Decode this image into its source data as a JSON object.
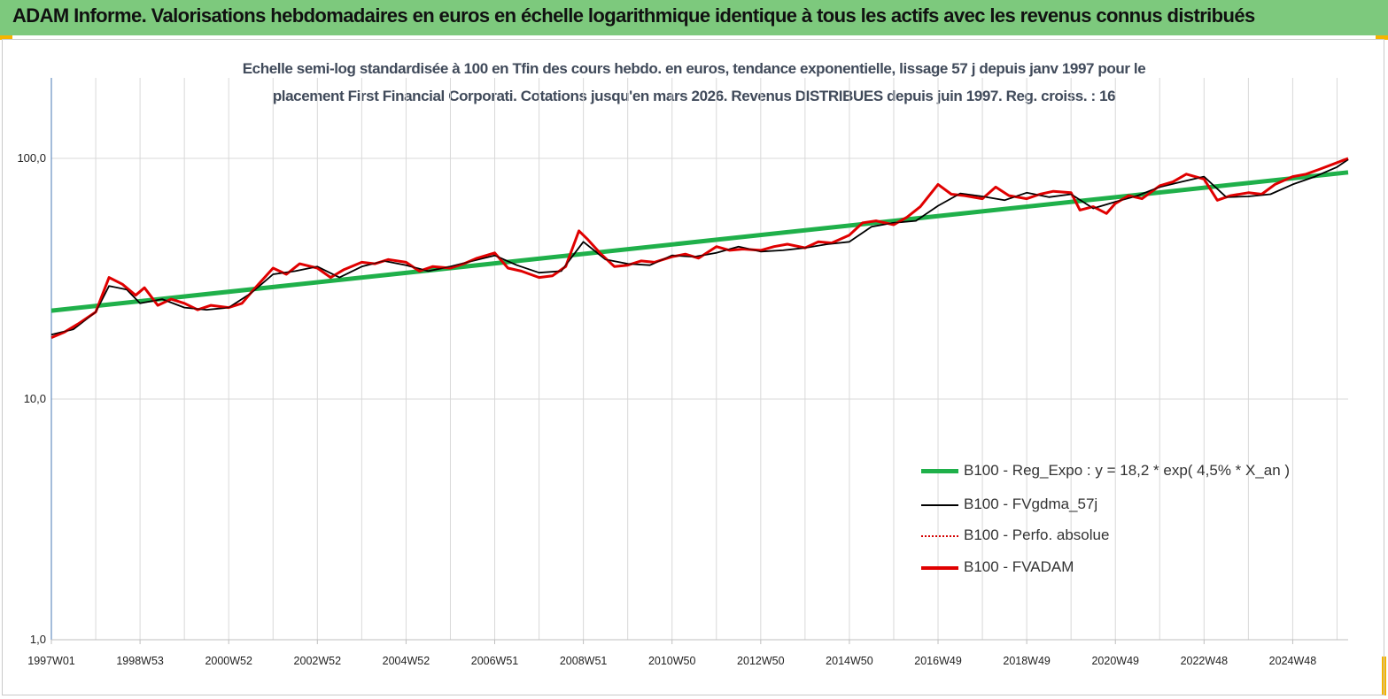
{
  "header": {
    "title": "ADAM Informe. Valorisations hebdomadaires en euros en échelle logarithmique identique à tous les actifs avec les revenus connus distribués"
  },
  "colors": {
    "header_bg": "#7dc97d",
    "regression": "#1fb04a",
    "moving_average": "#000000",
    "perfo_absolue": "#d40000",
    "fvadam": "#e00000",
    "corner_marks": "#f5b400"
  },
  "chart_data": {
    "type": "line",
    "title_lines": [
      "Echelle semi-log standardisée à 100 en Tfin des cours hebdo. en euros, tendance exponentielle, lissage 57 j depuis janv 1997 pour le",
      "placement First Financial Corporati. Cotations jusqu'en mars  2026. Revenus DISTRIBUES depuis juin 1997. Reg. croiss. : 16"
    ],
    "y_scale": "log",
    "ylim": [
      1,
      180
    ],
    "y_ticks": [
      {
        "value": 1,
        "label": "1,0"
      },
      {
        "value": 10,
        "label": "10,0"
      },
      {
        "value": 100,
        "label": "100,0"
      }
    ],
    "xlim": [
      1997.0,
      2026.25
    ],
    "x_ticks": [
      {
        "x": 1997.0,
        "label": "1997W01"
      },
      {
        "x": 1999.0,
        "label": "1998W53"
      },
      {
        "x": 2001.0,
        "label": "2000W52"
      },
      {
        "x": 2003.0,
        "label": "2002W52"
      },
      {
        "x": 2005.0,
        "label": "2004W52"
      },
      {
        "x": 2007.0,
        "label": "2006W51"
      },
      {
        "x": 2009.0,
        "label": "2008W51"
      },
      {
        "x": 2011.0,
        "label": "2010W50"
      },
      {
        "x": 2013.0,
        "label": "2012W50"
      },
      {
        "x": 2015.0,
        "label": "2014W50"
      },
      {
        "x": 2017.0,
        "label": "2016W49"
      },
      {
        "x": 2019.0,
        "label": "2018W49"
      },
      {
        "x": 2021.0,
        "label": "2020W49"
      },
      {
        "x": 2023.0,
        "label": "2022W48"
      },
      {
        "x": 2025.0,
        "label": "2024W48"
      }
    ],
    "grid": "vertical",
    "legend_position": "bottom-right",
    "series": [
      {
        "name": "B100 - Reg_Expo : y = 18,2 *  exp( 4,5% *  X_an )",
        "key": "regression",
        "style": "solid-thick",
        "x": [
          1997.0,
          2026.25
        ],
        "y": [
          23.3,
          87.5
        ]
      },
      {
        "name": "B100 - FVgdma_57j",
        "key": "moving_average",
        "style": "solid",
        "x": [
          1997.0,
          1997.5,
          1998.0,
          1998.3,
          1998.7,
          1999.0,
          1999.5,
          2000.0,
          2000.5,
          2001.0,
          2001.5,
          2002.0,
          2002.5,
          2003.0,
          2003.5,
          2004.0,
          2004.5,
          2005.0,
          2005.5,
          2006.0,
          2006.5,
          2007.0,
          2007.5,
          2008.0,
          2008.5,
          2009.0,
          2009.5,
          2010.0,
          2010.5,
          2011.0,
          2011.5,
          2012.0,
          2012.5,
          2013.0,
          2013.5,
          2014.0,
          2014.5,
          2015.0,
          2015.5,
          2016.0,
          2016.5,
          2017.0,
          2017.5,
          2018.0,
          2018.5,
          2019.0,
          2019.5,
          2020.0,
          2020.5,
          2021.0,
          2021.5,
          2022.0,
          2022.5,
          2023.0,
          2023.5,
          2024.0,
          2024.5,
          2025.0,
          2025.5,
          2026.0,
          2026.25
        ],
        "y": [
          18.5,
          19.5,
          23.0,
          29.5,
          28.5,
          25.0,
          26.0,
          24.0,
          23.5,
          24.0,
          27.5,
          33.0,
          34.0,
          35.5,
          32.0,
          35.5,
          37.5,
          36.0,
          34.0,
          35.5,
          37.5,
          39.5,
          36.0,
          33.5,
          34.0,
          45.0,
          38.0,
          36.5,
          36.0,
          39.5,
          39.0,
          40.5,
          43.0,
          41.0,
          41.5,
          42.5,
          44.0,
          45.0,
          52.0,
          54.0,
          55.0,
          63.5,
          71.5,
          69.5,
          67.0,
          72.0,
          69.0,
          71.0,
          62.0,
          66.0,
          70.0,
          76.0,
          80.0,
          84.0,
          69.0,
          69.5,
          71.0,
          78.0,
          84.0,
          92.0,
          99.0
        ]
      },
      {
        "name": "B100 - Perfo. absolue",
        "key": "perfo_absolue",
        "style": "dotted",
        "x": [],
        "y": []
      },
      {
        "name": "B100 - FVADAM",
        "key": "fvadam",
        "style": "solid-thick",
        "x": [
          1997.0,
          1997.3,
          1997.6,
          1998.0,
          1998.3,
          1998.6,
          1998.9,
          1999.1,
          1999.4,
          1999.7,
          2000.0,
          2000.3,
          2000.6,
          2001.0,
          2001.3,
          2001.6,
          2002.0,
          2002.3,
          2002.6,
          2003.0,
          2003.3,
          2003.6,
          2004.0,
          2004.3,
          2004.6,
          2005.0,
          2005.3,
          2005.6,
          2006.0,
          2006.3,
          2006.6,
          2007.0,
          2007.3,
          2007.6,
          2008.0,
          2008.3,
          2008.6,
          2008.9,
          2009.1,
          2009.4,
          2009.7,
          2010.0,
          2010.3,
          2010.6,
          2011.0,
          2011.3,
          2011.6,
          2012.0,
          2012.3,
          2012.6,
          2013.0,
          2013.3,
          2013.6,
          2014.0,
          2014.3,
          2014.6,
          2015.0,
          2015.3,
          2015.6,
          2016.0,
          2016.3,
          2016.6,
          2017.0,
          2017.3,
          2017.6,
          2018.0,
          2018.3,
          2018.6,
          2019.0,
          2019.3,
          2019.6,
          2020.0,
          2020.2,
          2020.5,
          2020.8,
          2021.0,
          2021.3,
          2021.6,
          2022.0,
          2022.3,
          2022.6,
          2023.0,
          2023.3,
          2023.6,
          2024.0,
          2024.3,
          2024.6,
          2025.0,
          2025.3,
          2025.6,
          2026.0,
          2026.25
        ],
        "y": [
          18.0,
          19.0,
          20.5,
          23.0,
          32.0,
          30.0,
          27.0,
          29.0,
          24.5,
          26.0,
          25.0,
          23.5,
          24.5,
          24.0,
          25.0,
          29.0,
          35.0,
          33.0,
          36.5,
          35.0,
          32.0,
          34.5,
          37.0,
          36.5,
          38.0,
          37.0,
          34.0,
          35.5,
          35.0,
          36.5,
          38.5,
          40.5,
          35.0,
          34.0,
          32.0,
          32.5,
          35.5,
          50.0,
          46.0,
          40.0,
          35.5,
          36.0,
          37.5,
          37.0,
          39.0,
          40.0,
          38.5,
          43.0,
          41.5,
          42.0,
          41.5,
          43.0,
          44.0,
          42.5,
          45.0,
          44.5,
          48.0,
          54.0,
          55.0,
          53.0,
          57.0,
          63.0,
          78.0,
          71.0,
          70.0,
          68.0,
          76.0,
          70.0,
          68.0,
          71.0,
          73.0,
          72.0,
          61.0,
          63.0,
          59.0,
          65.0,
          70.0,
          68.0,
          77.0,
          80.0,
          86.0,
          82.0,
          67.0,
          70.0,
          72.0,
          71.0,
          78.0,
          84.0,
          86.0,
          90.0,
          96.0,
          100.0
        ]
      }
    ]
  }
}
